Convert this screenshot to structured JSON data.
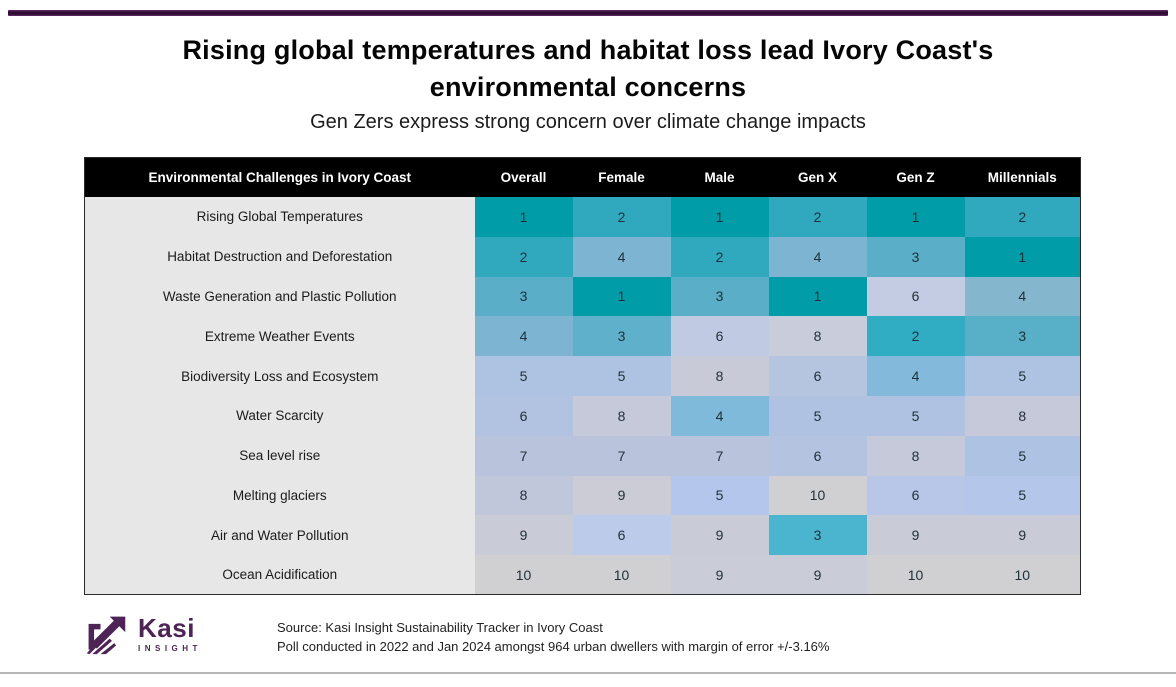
{
  "theme": {
    "top_bar_color": "#2e0f33",
    "table_header_bg": "#000000",
    "table_header_text": "#ffffff",
    "label_column_bg": "#E7E7E7",
    "cell_text_color": "#1f3038",
    "logo_purple": "#4E2456",
    "divider_gray": "#b5b5b5",
    "rank_color_scale": {
      "1": "#009CA7",
      "2": "#30A9BE",
      "3": "#5AAEC8",
      "4": "#7CB4D2",
      "5": "#AEC2E1",
      "6": "#B8C6E2",
      "7": "#B9C4DC",
      "8": "#C6CAD9",
      "9": "#C9CBD7",
      "10": "#D0D0D3"
    }
  },
  "header": {
    "title": "Rising global temperatures and habitat loss lead Ivory Coast's environmental concerns",
    "subtitle": "Gen Zers express strong concern over climate change impacts"
  },
  "chart_data": {
    "type": "heatmap",
    "title": "Rising global temperatures and habitat loss lead Ivory Coast's environmental concerns",
    "subtitle": "Gen Zers express strong concern over climate change impacts",
    "columns": [
      "Environmental Challenges in Ivory Coast",
      "Overall",
      "Female",
      "Male",
      "Gen X",
      "Gen Z",
      "Millennials"
    ],
    "rows": [
      {
        "label": "Rising Global Temperatures",
        "values": [
          1,
          2,
          1,
          2,
          1,
          2
        ],
        "colors": [
          "#009CA7",
          "#30A9BE",
          "#009CA7",
          "#30A9BE",
          "#009CA7",
          "#30A9BE"
        ]
      },
      {
        "label": "Habitat Destruction and Deforestation",
        "values": [
          2,
          4,
          2,
          4,
          3,
          1
        ],
        "colors": [
          "#30A9BE",
          "#7CB4D2",
          "#30A9BE",
          "#7CB4D2",
          "#5AAEC8",
          "#009CA7"
        ]
      },
      {
        "label": "Waste Generation and Plastic Pollution",
        "values": [
          3,
          1,
          3,
          1,
          6,
          4
        ],
        "colors": [
          "#5AAEC8",
          "#009CA7",
          "#5AAEC8",
          "#009CA7",
          "#C4CCE3",
          "#84B6CE"
        ]
      },
      {
        "label": "Extreme Weather Events",
        "values": [
          4,
          3,
          6,
          8,
          2,
          3
        ],
        "colors": [
          "#7CB4D2",
          "#5FB0CB",
          "#C0CAE3",
          "#C9CCDA",
          "#30ADC3",
          "#58AFC8"
        ]
      },
      {
        "label": "Biodiversity Loss and Ecosystem",
        "values": [
          5,
          5,
          8,
          6,
          4,
          5
        ],
        "colors": [
          "#AEC2E1",
          "#AEC2E1",
          "#C8CBD7",
          "#B5C4DF",
          "#83BADB",
          "#AEC2E1"
        ]
      },
      {
        "label": "Water Scarcity",
        "values": [
          6,
          8,
          4,
          5,
          5,
          8
        ],
        "colors": [
          "#B2C2E1",
          "#C5C9DA",
          "#7FBADB",
          "#AFC2E2",
          "#AFC2E2",
          "#C5C9DA"
        ]
      },
      {
        "label": "Sea level rise",
        "values": [
          7,
          7,
          7,
          6,
          8,
          5
        ],
        "colors": [
          "#B9C4DC",
          "#B9C4DC",
          "#B9C4DC",
          "#B3C3E0",
          "#C5C9D9",
          "#AEC2E3"
        ]
      },
      {
        "label": "Melting glaciers",
        "values": [
          8,
          9,
          5,
          10,
          6,
          5
        ],
        "colors": [
          "#C1C7DB",
          "#CBCCD6",
          "#B4C6EB",
          "#D0D0D2",
          "#B8C7E8",
          "#B5C6EB"
        ]
      },
      {
        "label": "Air and Water Pollution",
        "values": [
          9,
          6,
          9,
          3,
          9,
          9
        ],
        "colors": [
          "#C9CBD7",
          "#BDCBEA",
          "#C9CBD7",
          "#4BB5CF",
          "#C9CBD7",
          "#C9CBD7"
        ]
      },
      {
        "label": "Ocean Acidification",
        "values": [
          10,
          10,
          9,
          9,
          10,
          10
        ],
        "colors": [
          "#D0D0D3",
          "#D0D0D3",
          "#CACCD8",
          "#CACCD8",
          "#D0D0D3",
          "#D0D0D3"
        ]
      }
    ]
  },
  "footer": {
    "logo_name": "Kasi",
    "logo_subtext": "INSIGHT",
    "source_line1": "Source: Kasi Insight Sustainability Tracker in Ivory Coast",
    "source_line2": "Poll  conducted in 2022 and Jan 2024 amongst 964 urban dwellers with margin of error +/-3.16%"
  }
}
